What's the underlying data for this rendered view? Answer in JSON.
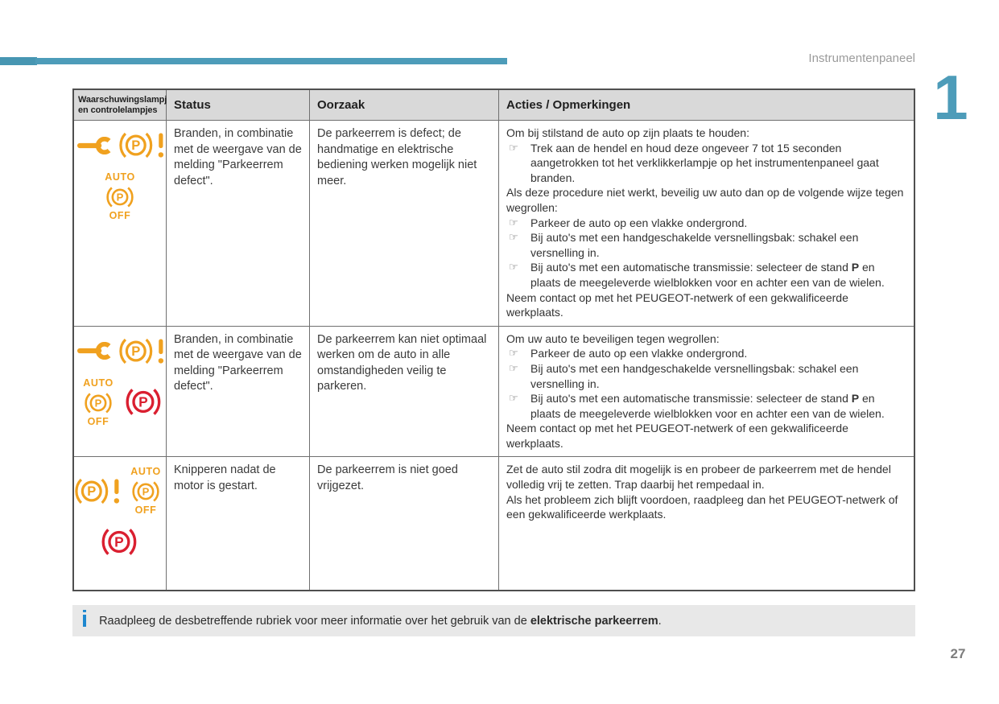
{
  "page": {
    "header_title": "Instrumentenpaneel",
    "chapter_number": "1",
    "page_number": "27"
  },
  "colors": {
    "accent": "#4d9cb9",
    "orange": "#f0a11f",
    "red": "#da1f30",
    "info_blue": "#1d87cf"
  },
  "table": {
    "bullet_symbol": "☞",
    "headers": [
      "Waarschuwingslampjes en controlelampjes",
      "Status",
      "Oorzaak",
      "Acties / Opmerkingen"
    ],
    "rows": [
      {
        "icon_lines": [
          [
            "wrench-icon",
            "parking-brake-fault-icon"
          ],
          [
            "auto-parking-brake-off-icon"
          ]
        ],
        "status": "Branden, in combinatie met de weergave van de melding \"Parkeerrem defect\".",
        "oorzaak": "De parkeerrem is defect; de handmatige en elektrische bediening werken mogelijk niet meer.",
        "acties": [
          {
            "type": "text",
            "text": "Om bij stilstand de auto op zijn plaats te houden:"
          },
          {
            "type": "bullet",
            "text": "Trek aan de hendel en houd deze ongeveer 7 tot 15 seconden aangetrokken tot het verklikkerlampje op het instrumentenpaneel gaat branden."
          },
          {
            "type": "text",
            "text": "Als deze procedure niet werkt, beveilig uw auto dan op de volgende wijze tegen wegrollen:"
          },
          {
            "type": "bullet",
            "text": "Parkeer de auto op een vlakke ondergrond."
          },
          {
            "type": "bullet",
            "text": "Bij auto's met een handgeschakelde versnellingsbak: schakel een versnelling in."
          },
          {
            "type": "bullet",
            "text": "Bij auto's met een automatische transmissie: selecteer de stand **P** en plaats de meegeleverde wielblokken voor en achter een van de wielen."
          },
          {
            "type": "text",
            "text": "Neem contact op met het PEUGEOT-netwerk of een gekwalificeerde werkplaats."
          }
        ]
      },
      {
        "icon_lines": [
          [
            "wrench-icon",
            "parking-brake-fault-icon"
          ],
          [
            "auto-parking-brake-off-icon",
            "parking-brake-red-icon"
          ]
        ],
        "status": "Branden, in combinatie met de weergave van de melding \"Parkeerrem defect\".",
        "oorzaak": "De parkeerrem kan niet optimaal werken om de auto in alle omstandigheden veilig te parkeren.",
        "acties": [
          {
            "type": "text",
            "text": "Om uw auto te beveiligen tegen wegrollen:"
          },
          {
            "type": "bullet",
            "text": "Parkeer de auto op een vlakke ondergrond."
          },
          {
            "type": "bullet",
            "text": "Bij auto's met een handgeschakelde versnellingsbak: schakel een versnelling in."
          },
          {
            "type": "bullet",
            "text": "Bij auto's met een automatische transmissie: selecteer de stand **P** en plaats de meegeleverde wielblokken voor en achter een van de wielen."
          },
          {
            "type": "text",
            "text": "Neem contact op met het PEUGEOT-netwerk of een gekwalificeerde werkplaats."
          }
        ]
      },
      {
        "icon_lines": [
          [
            "parking-brake-fault-icon",
            "auto-parking-brake-off-icon"
          ],
          [
            "parking-brake-red-icon"
          ]
        ],
        "status": "Knipperen nadat de motor is gestart.",
        "oorzaak": "De parkeerrem is niet goed vrijgezet.",
        "acties": [
          {
            "type": "text",
            "text": "Zet de auto stil zodra dit mogelijk is en probeer de parkeerrem met de hendel volledig vrij te zetten. Trap daarbij het rempedaal in."
          },
          {
            "type": "text",
            "text": "Als het probleem zich blijft voordoen, raadpleeg dan het PEUGEOT-netwerk of een gekwalificeerde werkplaats."
          }
        ]
      }
    ]
  },
  "footer_note": {
    "icon_glyph": "i",
    "text": "Raadpleeg de desbetreffende rubriek voor meer informatie over het gebruik van de ",
    "bold_text": "elektrische parkeerrem",
    "suffix": "."
  }
}
